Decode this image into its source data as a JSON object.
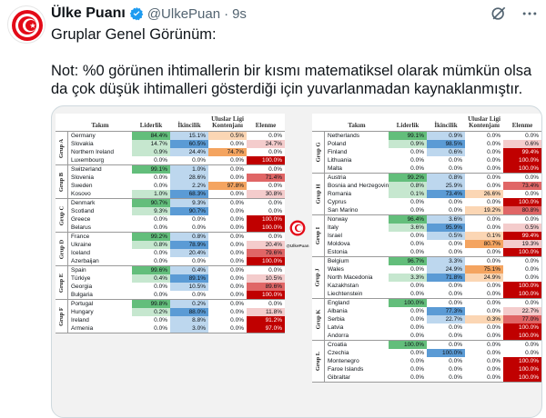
{
  "post": {
    "display_name": "Ülke Puanı",
    "handle": "@UlkePuan",
    "separator": "·",
    "time": "9s",
    "text_line1": "Gruplar Genel Görünüm:",
    "text_note": "Not: %0 görünen ihtimallerin bir kısmı matematiksel olarak mümkün olsa da çok düşük ihtimalleri gösterdiği için yuvarlanmadan kaynaklanmıştır."
  },
  "icons": {
    "verified": "verified-badge-icon",
    "grok": "grok-icon",
    "more": "more-dots-icon"
  },
  "colors": {
    "green": "#63be7b",
    "green_light": "#c6e7cf",
    "blue": "#5b9bd5",
    "blue_light": "#bdd7ee",
    "orange": "#f4a460",
    "orange_light": "#fbd6b4",
    "red": "#c00000",
    "red_mid": "#e06666",
    "red_light": "#f4cccc",
    "verified_blue": "#1d9bf0"
  },
  "table": {
    "headers": [
      "Takım",
      "Liderlik",
      "İkincilik",
      "Uluslar Ligi Kontenjanı",
      "Elenme"
    ],
    "logo_label": "@UlkePuan",
    "left": [
      {
        "group": "Grup A",
        "rows": [
          [
            "Germany",
            "84.4%",
            "15.1%",
            "0.5%",
            "0.0%"
          ],
          [
            "Slovakia",
            "14.7%",
            "60.5%",
            "0.0%",
            "24.7%"
          ],
          [
            "Northern Ireland",
            "0.9%",
            "24.4%",
            "74.7%",
            "0.0%"
          ],
          [
            "Luxembourg",
            "0.0%",
            "0.0%",
            "0.0%",
            "100.0%"
          ]
        ]
      },
      {
        "group": "Grup B",
        "rows": [
          [
            "Switzerland",
            "99.1%",
            "1.0%",
            "0.0%",
            "0.0%"
          ],
          [
            "Slovenia",
            "0.0%",
            "28.6%",
            "0.0%",
            "71.4%"
          ],
          [
            "Sweden",
            "0.0%",
            "2.2%",
            "97.8%",
            "0.0%"
          ],
          [
            "Kosovo",
            "1.0%",
            "68.3%",
            "0.0%",
            "30.8%"
          ]
        ]
      },
      {
        "group": "Grup C",
        "rows": [
          [
            "Denmark",
            "90.7%",
            "9.3%",
            "0.0%",
            "0.0%"
          ],
          [
            "Scotland",
            "9.3%",
            "90.7%",
            "0.0%",
            "0.0%"
          ],
          [
            "Greece",
            "0.0%",
            "0.0%",
            "0.0%",
            "100.0%"
          ],
          [
            "Belarus",
            "0.0%",
            "0.0%",
            "0.0%",
            "100.0%"
          ]
        ]
      },
      {
        "group": "Grup D",
        "rows": [
          [
            "France",
            "99.2%",
            "0.8%",
            "0.0%",
            "0.0%"
          ],
          [
            "Ukraine",
            "0.8%",
            "78.9%",
            "0.0%",
            "20.4%"
          ],
          [
            "Iceland",
            "0.0%",
            "20.4%",
            "0.0%",
            "79.6%"
          ],
          [
            "Azerbaijan",
            "0.0%",
            "0.0%",
            "0.0%",
            "100.0%"
          ]
        ]
      },
      {
        "group": "Grup E",
        "rows": [
          [
            "Spain",
            "99.6%",
            "0.4%",
            "0.0%",
            "0.0%"
          ],
          [
            "Türkiye",
            "0.4%",
            "89.1%",
            "0.0%",
            "10.5%"
          ],
          [
            "Georgia",
            "0.0%",
            "10.5%",
            "0.0%",
            "89.6%"
          ],
          [
            "Bulgaria",
            "0.0%",
            "0.0%",
            "0.0%",
            "100.0%"
          ]
        ]
      },
      {
        "group": "Grup F",
        "rows": [
          [
            "Portugal",
            "99.8%",
            "0.2%",
            "0.0%",
            "0.0%"
          ],
          [
            "Hungary",
            "0.2%",
            "88.0%",
            "0.0%",
            "11.8%"
          ],
          [
            "Ireland",
            "0.0%",
            "8.8%",
            "0.0%",
            "91.2%"
          ],
          [
            "Armenia",
            "0.0%",
            "3.0%",
            "0.0%",
            "97.0%"
          ]
        ]
      }
    ],
    "right": [
      {
        "group": "Grup G",
        "rows": [
          [
            "Netherlands",
            "99.1%",
            "0.9%",
            "0.0%",
            "0.0%"
          ],
          [
            "Poland",
            "0.9%",
            "98.5%",
            "0.0%",
            "0.6%"
          ],
          [
            "Finland",
            "0.0%",
            "0.6%",
            "0.0%",
            "99.4%"
          ],
          [
            "Lithuania",
            "0.0%",
            "0.0%",
            "0.0%",
            "100.0%"
          ],
          [
            "Malta",
            "0.0%",
            "0.0%",
            "0.0%",
            "100.0%"
          ]
        ]
      },
      {
        "group": "Grup H",
        "rows": [
          [
            "Austria",
            "99.2%",
            "0.8%",
            "0.0%",
            "0.0%"
          ],
          [
            "Bosnia and Herzegovina",
            "0.8%",
            "25.9%",
            "0.0%",
            "73.4%"
          ],
          [
            "Romania",
            "0.1%",
            "73.4%",
            "26.6%",
            "0.0%"
          ],
          [
            "Cyprus",
            "0.0%",
            "0.0%",
            "0.0%",
            "100.0%"
          ],
          [
            "San Marino",
            "0.0%",
            "0.0%",
            "19.2%",
            "80.8%"
          ]
        ]
      },
      {
        "group": "Grup I",
        "rows": [
          [
            "Norway",
            "96.4%",
            "3.6%",
            "0.0%",
            "0.0%"
          ],
          [
            "Italy",
            "3.6%",
            "95.9%",
            "0.0%",
            "0.5%"
          ],
          [
            "Israel",
            "0.0%",
            "0.5%",
            "0.1%",
            "99.4%"
          ],
          [
            "Moldova",
            "0.0%",
            "0.0%",
            "80.7%",
            "19.3%"
          ],
          [
            "Estonia",
            "0.0%",
            "0.0%",
            "0.0%",
            "100.0%"
          ]
        ]
      },
      {
        "group": "Grup J",
        "rows": [
          [
            "Belgium",
            "96.7%",
            "3.3%",
            "0.0%",
            "0.0%"
          ],
          [
            "Wales",
            "0.0%",
            "24.9%",
            "75.1%",
            "0.0%"
          ],
          [
            "North Macedonia",
            "3.3%",
            "71.8%",
            "24.9%",
            "0.0%"
          ],
          [
            "Kazakhstan",
            "0.0%",
            "0.0%",
            "0.0%",
            "100.0%"
          ],
          [
            "Liechtenstein",
            "0.0%",
            "0.0%",
            "0.0%",
            "100.0%"
          ]
        ]
      },
      {
        "group": "Grup K",
        "rows": [
          [
            "England",
            "100.0%",
            "0.0%",
            "0.0%",
            "0.0%"
          ],
          [
            "Albania",
            "0.0%",
            "77.3%",
            "0.0%",
            "22.7%"
          ],
          [
            "Serbia",
            "0.0%",
            "22.7%",
            "0.3%",
            "77.0%"
          ],
          [
            "Latvia",
            "0.0%",
            "0.0%",
            "0.0%",
            "100.0%"
          ],
          [
            "Andorra",
            "0.0%",
            "0.0%",
            "0.0%",
            "100.0%"
          ]
        ]
      },
      {
        "group": "Grup L",
        "rows": [
          [
            "Croatia",
            "100.0%",
            "0.0%",
            "0.0%",
            "0.0%"
          ],
          [
            "Czechia",
            "0.0%",
            "100.0%",
            "0.0%",
            "0.0%"
          ],
          [
            "Montenegro",
            "0.0%",
            "0.0%",
            "0.0%",
            "100.0%"
          ],
          [
            "Faroe Islands",
            "0.0%",
            "0.0%",
            "0.0%",
            "100.0%"
          ],
          [
            "Gibraltar",
            "0.0%",
            "0.0%",
            "0.0%",
            "100.0%"
          ]
        ]
      }
    ]
  }
}
